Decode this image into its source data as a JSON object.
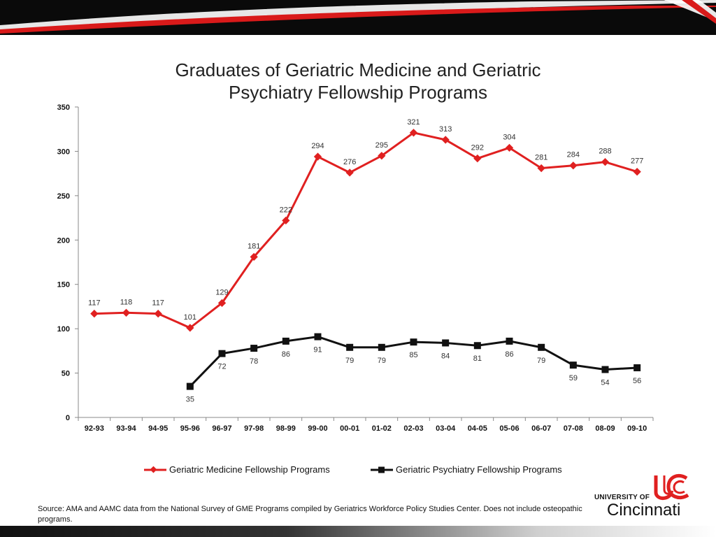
{
  "chart_data": {
    "type": "line",
    "title": "Graduates of Geriatric Medicine and Geriatric Psychiatry Fellowship Programs",
    "title_lines": [
      "Graduates of Geriatric Medicine and Geriatric",
      "Psychiatry Fellowship Programs"
    ],
    "categories": [
      "92-93",
      "93-94",
      "94-95",
      "95-96",
      "96-97",
      "97-98",
      "98-99",
      "99-00",
      "00-01",
      "01-02",
      "02-03",
      "03-04",
      "04-05",
      "05-06",
      "06-07",
      "07-08",
      "08-09",
      "09-10"
    ],
    "series": [
      {
        "name": "Geriatric Medicine Fellowship Programs",
        "color": "#e02020",
        "marker": "diamond",
        "values": [
          117,
          118,
          117,
          101,
          129,
          181,
          222,
          294,
          276,
          295,
          321,
          313,
          292,
          304,
          281,
          284,
          288,
          277
        ],
        "label_position": "above"
      },
      {
        "name": "Geriatric Psychiatry Fellowship Programs",
        "color": "#111111",
        "marker": "square",
        "values": [
          null,
          null,
          null,
          35,
          72,
          78,
          86,
          91,
          79,
          79,
          85,
          84,
          81,
          86,
          79,
          59,
          54,
          56
        ],
        "label_position": "below"
      }
    ],
    "yticks": [
      0,
      50,
      100,
      150,
      200,
      250,
      300,
      350
    ],
    "ylim": [
      0,
      350
    ],
    "xlabel": "",
    "ylabel": "",
    "grid": false,
    "legend": "bottom"
  },
  "source_note": "Source:  AMA and AAMC data from the National Survey of GME Programs compiled by Geriatrics Workforce Policy Studies Center.  Does not include osteopathic programs.",
  "logo": {
    "university_of": "UNIVERSITY OF",
    "name": "Cincinnati",
    "mark_color": "#e02020"
  },
  "colors": {
    "banner_dark": "#0a0a0a",
    "accent_red": "#e02020"
  }
}
